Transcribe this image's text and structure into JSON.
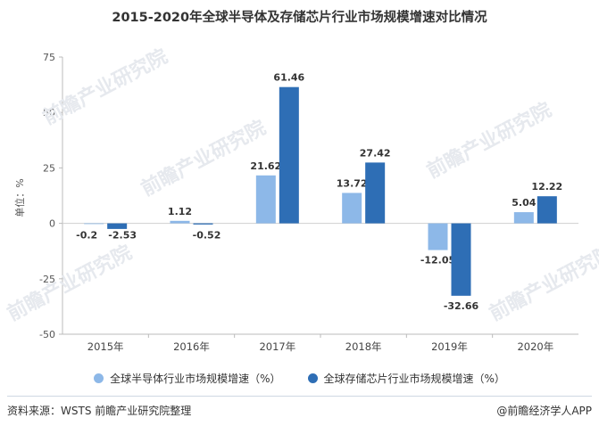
{
  "title": "2015-2020年全球半导体及存储芯片行业市场规模增速对比情况",
  "source": "资料来源：WSTS 前瞻产业研究院整理",
  "brand": "@前瞻经济学人APP",
  "watermark": "前瞻产业研究院",
  "chart_data": {
    "type": "bar",
    "title": "2015-2020年全球半导体及存储芯片行业市场规模增速对比情况",
    "ylabel": "单位：%",
    "xlabel": "",
    "categories": [
      "2015年",
      "2016年",
      "2017年",
      "2018年",
      "2019年",
      "2020年"
    ],
    "yticks": [
      75,
      50,
      25,
      0,
      -25,
      -50
    ],
    "ylim": [
      -50,
      75
    ],
    "grid": false,
    "legend_position": "bottom",
    "series": [
      {
        "name": "全球半导体行业市场规模增速（%）",
        "color": "#8db8e8",
        "values": [
          -0.2,
          1.12,
          21.62,
          13.72,
          -12.05,
          5.04
        ],
        "labels": [
          "-0.2",
          "1.12",
          "21.62",
          "13.72",
          "-12.05",
          "5.04"
        ]
      },
      {
        "name": "全球存储芯片行业市场规模增速（%）",
        "color": "#2e6eb5",
        "values": [
          -2.53,
          -0.52,
          61.46,
          27.42,
          -32.66,
          12.22
        ],
        "labels": [
          "-2.53",
          "-0.52",
          "61.46",
          "27.42",
          "-32.66",
          "12.22"
        ]
      }
    ]
  }
}
